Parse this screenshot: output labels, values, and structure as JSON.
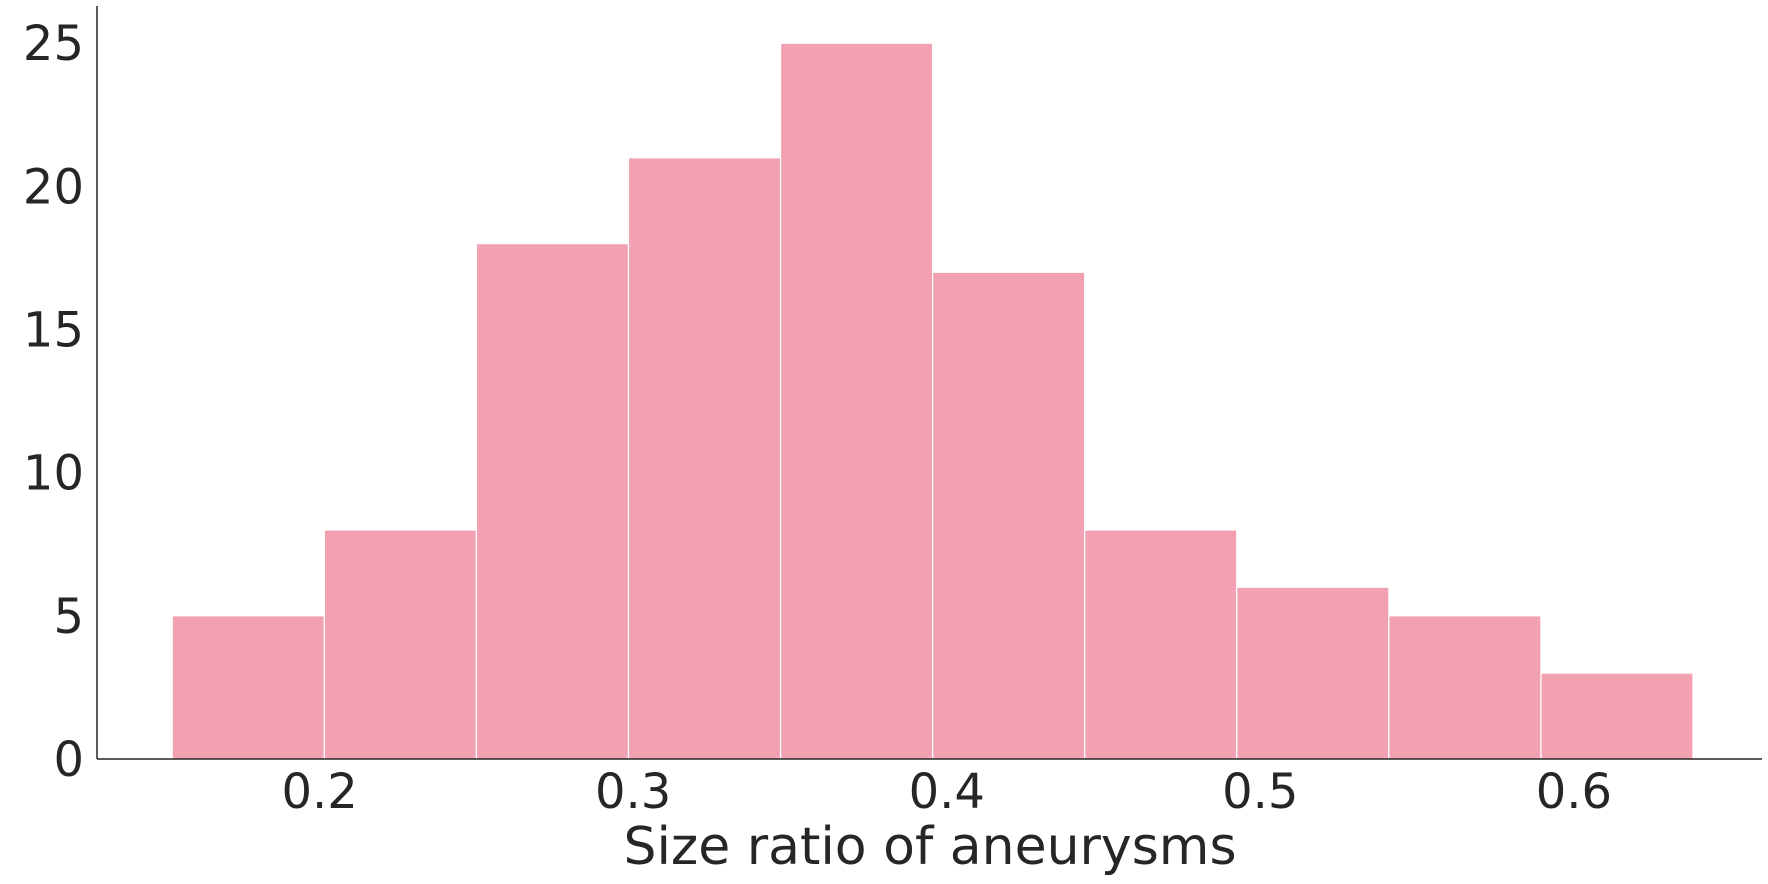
{
  "chart_data": {
    "type": "bar",
    "subtype": "histogram",
    "title": "",
    "xlabel": "Size ratio of aneurysms",
    "ylabel": "",
    "bin_edges": [
      0.153,
      0.2015,
      0.25,
      0.2985,
      0.347,
      0.3955,
      0.444,
      0.4925,
      0.541,
      0.5895,
      0.638
    ],
    "values": [
      5,
      8,
      18,
      21,
      25,
      17,
      8,
      6,
      5,
      3
    ],
    "xlim": [
      0.129,
      0.66
    ],
    "ylim": [
      0,
      26.3
    ],
    "xticks": [
      0.2,
      0.3,
      0.4,
      0.5,
      0.6
    ],
    "xtick_labels": [
      "0.2",
      "0.3",
      "0.4",
      "0.5",
      "0.6"
    ],
    "yticks": [
      0,
      5,
      10,
      15,
      20,
      25
    ],
    "ytick_labels": [
      "0",
      "5",
      "10",
      "15",
      "20",
      "25"
    ],
    "bar_color": "#f1a1b2",
    "bar_edge_color": "#ffffff",
    "axis_color": "#262626",
    "grid": false,
    "legend": "none"
  }
}
